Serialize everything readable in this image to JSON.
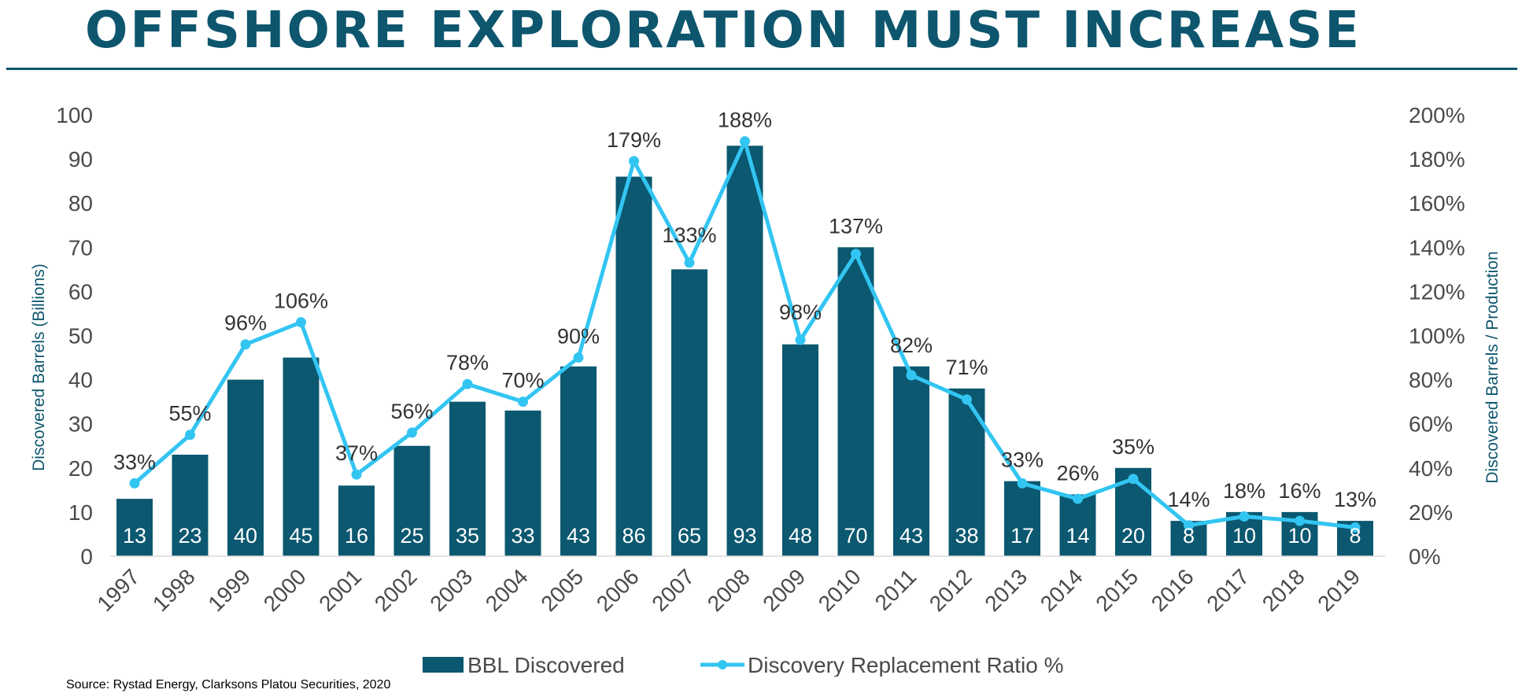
{
  "page": {
    "title": "OFFSHORE EXPLORATION MUST INCREASE",
    "source": "Source: Rystad Energy, Clarksons Platou Securities, 2020"
  },
  "colors": {
    "title": "#0d566e",
    "bar": "#0b5870",
    "line": "#33c5f2",
    "axis_text": "#4a4a4a",
    "axis_title": "#0d566e"
  },
  "chart_data": {
    "type": "bar",
    "categories": [
      "1997",
      "1998",
      "1999",
      "2000",
      "2001",
      "2002",
      "2003",
      "2004",
      "2005",
      "2006",
      "2007",
      "2008",
      "2009",
      "2010",
      "2011",
      "2012",
      "2013",
      "2014",
      "2015",
      "2016",
      "2017",
      "2018",
      "2019"
    ],
    "series": [
      {
        "name": "BBL Discovered",
        "type": "bar",
        "axis": "left",
        "values": [
          13,
          23,
          40,
          45,
          16,
          25,
          35,
          33,
          43,
          86,
          65,
          93,
          48,
          70,
          43,
          38,
          17,
          14,
          20,
          8,
          10,
          10,
          8
        ]
      },
      {
        "name": "Discovery Replacement Ratio %",
        "type": "line",
        "axis": "right",
        "values": [
          33,
          55,
          96,
          106,
          37,
          56,
          78,
          70,
          90,
          179,
          133,
          188,
          98,
          137,
          82,
          71,
          33,
          26,
          35,
          14,
          18,
          16,
          13
        ]
      }
    ],
    "ylabel": "Discovered Barrels (Billions)",
    "y2label": "Discovered Barrels / Production",
    "ylim": [
      0,
      100
    ],
    "y2lim": [
      0,
      200
    ],
    "yticks": [
      "0",
      "10",
      "20",
      "30",
      "40",
      "50",
      "60",
      "70",
      "80",
      "90",
      "100"
    ],
    "y2ticks": [
      "0%",
      "20%",
      "40%",
      "60%",
      "80%",
      "100%",
      "120%",
      "140%",
      "160%",
      "180%",
      "200%"
    ],
    "grid": false,
    "legend_position": "bottom"
  }
}
